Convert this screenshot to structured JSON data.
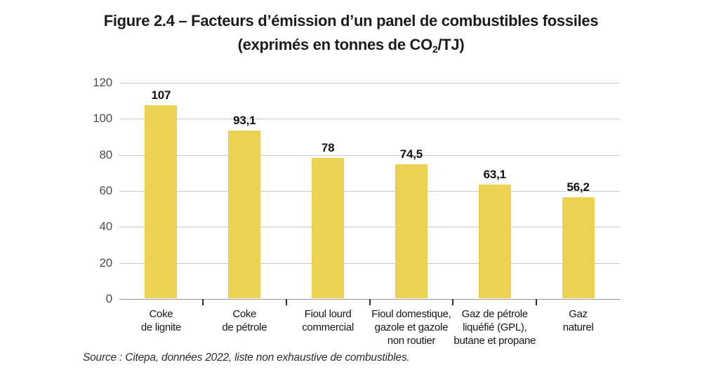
{
  "figure": {
    "title_line1": "Figure 2.4 – Facteurs d’émission d’un panel de combustibles fossiles",
    "title_line2_pre": "(exprimés en tonnes de CO",
    "title_line2_sub": "2",
    "title_line2_post": "/TJ)",
    "source": "Source : Citepa, données 2022, liste non exhaustive de combustibles."
  },
  "chart_data": {
    "type": "bar",
    "title": "Figure 2.4 – Facteurs d’émission d’un panel de combustibles fossiles (exprimés en tonnes de CO2/TJ)",
    "unit": "tonnes de CO2/TJ",
    "categories": [
      [
        "Coke",
        "de lignite"
      ],
      [
        "Coke",
        "de pétrole"
      ],
      [
        "Fioul lourd",
        "commercial"
      ],
      [
        "Fioul domestique,",
        "gazole et gazole",
        "non routier"
      ],
      [
        "Gaz de pétrole",
        "liquéfié (GPL),",
        "butane et propane"
      ],
      [
        "Gaz",
        "naturel"
      ]
    ],
    "values": [
      107,
      93.1,
      78,
      74.5,
      63.1,
      56.2
    ],
    "value_labels": [
      "107",
      "93,1",
      "78",
      "74,5",
      "63,1",
      "56,2"
    ],
    "y_ticks": [
      0,
      20,
      40,
      60,
      80,
      100,
      120
    ],
    "ylim": [
      0,
      120
    ],
    "xlabel": "",
    "ylabel": "",
    "grid": true,
    "legend": false,
    "bar_color": "#EDD252",
    "gridline_color": "#c9c9c9",
    "source": "Source : Citepa, données 2022, liste non exhaustive de combustibles."
  }
}
